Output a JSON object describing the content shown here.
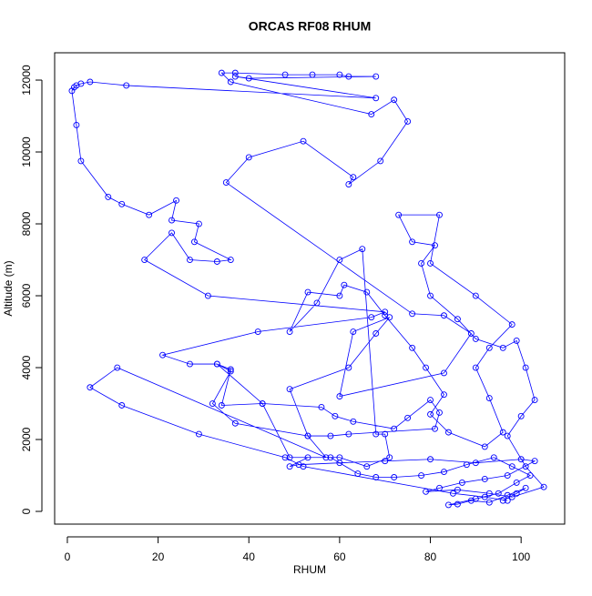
{
  "chart_data": {
    "type": "line",
    "title": "ORCAS RF08 RHUM",
    "xlabel": "RHUM",
    "ylabel": "Altitude (m)",
    "color": "#0000ff",
    "x": [
      96,
      99,
      101,
      97,
      93,
      89,
      86,
      84,
      90,
      95,
      99,
      102,
      98,
      94,
      88,
      83,
      78,
      72,
      68,
      64,
      58,
      53,
      49,
      51,
      60,
      70,
      80,
      90,
      100,
      103,
      97,
      92,
      87,
      82,
      79,
      86,
      93,
      98,
      105,
      101,
      97,
      100,
      103,
      101,
      99,
      96,
      90,
      86,
      80,
      78,
      81,
      76,
      73,
      82,
      80,
      90,
      98,
      93,
      90,
      93,
      96,
      92,
      84,
      80,
      83,
      79,
      76,
      70,
      66,
      61,
      60,
      53,
      49,
      55,
      60,
      65,
      68,
      70,
      71,
      66,
      60,
      49,
      43,
      34,
      36,
      33,
      43,
      56,
      59,
      63,
      72,
      75,
      80,
      82,
      81,
      62,
      58,
      53,
      49,
      62,
      68,
      71,
      63,
      60,
      83,
      89,
      83,
      76,
      35,
      40,
      52,
      63,
      62,
      69,
      75,
      72,
      67,
      36,
      34,
      37,
      48,
      54,
      60,
      62,
      68,
      40,
      37,
      68,
      13,
      5,
      3,
      2,
      1.5,
      1,
      2,
      3,
      9,
      12,
      18,
      24,
      23,
      29,
      28,
      36,
      33,
      27,
      23,
      17,
      31,
      70,
      67,
      42,
      21,
      27,
      33,
      36,
      32,
      37,
      53,
      57,
      11,
      5,
      12,
      29,
      48,
      52,
      85,
      92,
      97
    ],
    "values": [
      300,
      500,
      650,
      450,
      250,
      300,
      200,
      180,
      350,
      500,
      800,
      1000,
      1250,
      1500,
      1300,
      1100,
      1000,
      950,
      950,
      1050,
      1500,
      1500,
      1250,
      1300,
      1350,
      1400,
      1450,
      1350,
      1450,
      1400,
      1000,
      900,
      800,
      650,
      550,
      600,
      500,
      400,
      680,
      1250,
      2100,
      2650,
      3100,
      4000,
      4750,
      4550,
      4800,
      5350,
      6000,
      6900,
      7400,
      7500,
      8250,
      8250,
      6900,
      6000,
      5200,
      4550,
      4000,
      3150,
      2200,
      1800,
      2200,
      2700,
      3250,
      4000,
      4550,
      5450,
      6100,
      6300,
      6000,
      6100,
      5000,
      5800,
      7000,
      7300,
      2150,
      2150,
      1500,
      1250,
      1500,
      1500,
      3000,
      2950,
      3950,
      4100,
      3000,
      2900,
      2650,
      2500,
      2300,
      2600,
      3100,
      2750,
      2300,
      2150,
      2100,
      2100,
      3400,
      4000,
      4950,
      5400,
      5000,
      3200,
      3850,
      4950,
      5450,
      5500,
      9150,
      9850,
      10300,
      9300,
      9100,
      9750,
      10850,
      11450,
      11050,
      11950,
      12200,
      12200,
      12150,
      12150,
      12150,
      12100,
      12100,
      12050,
      12100,
      11500,
      11850,
      11950,
      11900,
      11850,
      11800,
      11700,
      10750,
      9750,
      8750,
      8550,
      8250,
      8650,
      8100,
      8000,
      7500,
      7000,
      6950,
      7000,
      7750,
      7000,
      6000,
      5550,
      5400,
      5000,
      4350,
      4100,
      4100,
      3900,
      3000,
      2450,
      2100,
      1500,
      4000,
      3450,
      2950,
      2150,
      1500,
      1250,
      500,
      400,
      300
    ],
    "xlim": [
      -2.8,
      109.6
    ],
    "ylim": [
      -354,
      12760
    ],
    "xticks": [
      0,
      20,
      40,
      60,
      80,
      100
    ],
    "yticks": [
      0,
      2000,
      4000,
      6000,
      8000,
      10000,
      12000
    ]
  }
}
